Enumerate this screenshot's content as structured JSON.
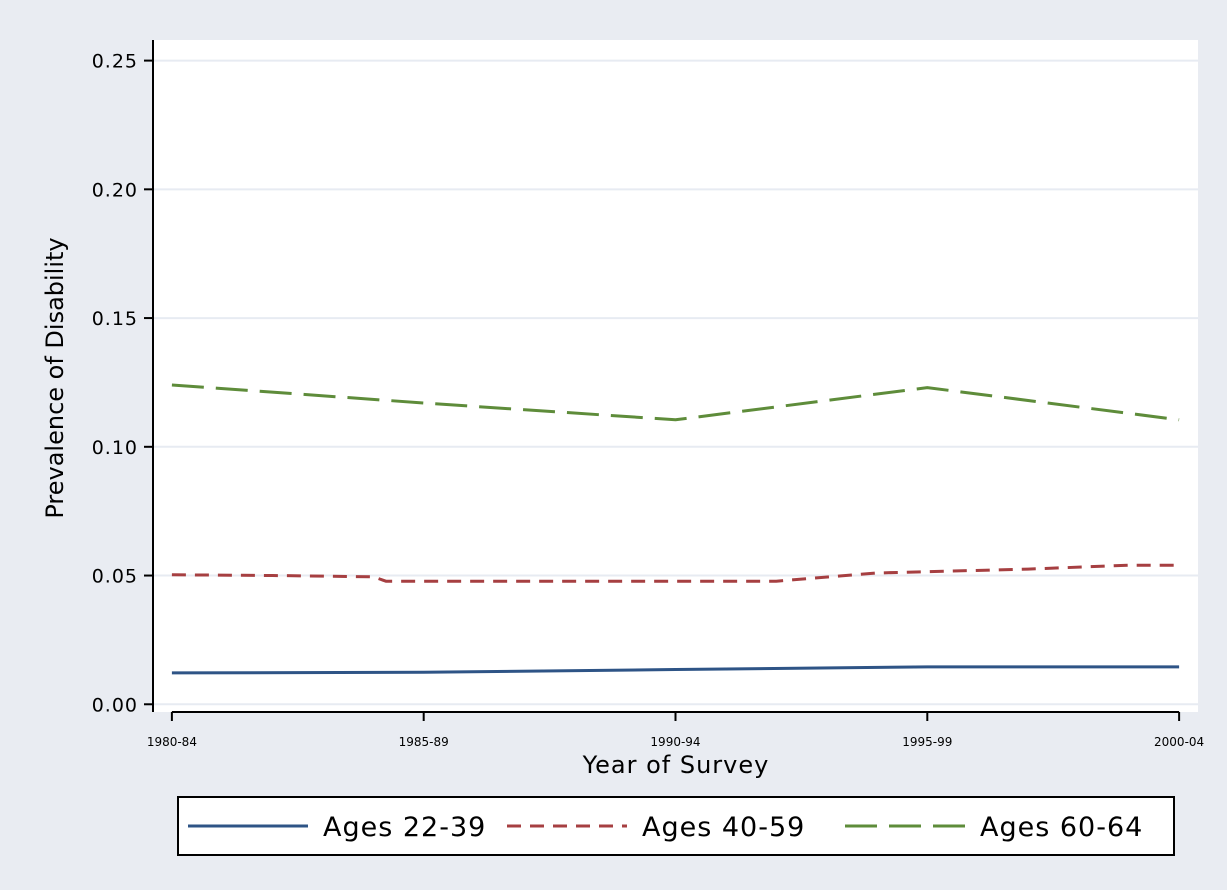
{
  "chart_data": {
    "type": "line",
    "title": "",
    "xlabel": "Year of Survey",
    "ylabel": "Prevalence of Disability",
    "x": [
      "1980-84",
      "1985-89",
      "1990-94",
      "1995-99",
      "2000-04"
    ],
    "x_values": [
      0,
      1,
      2,
      3,
      4
    ],
    "x_tick_labels": [
      "1980-84",
      "1985-89",
      "1990-94",
      "1995-99",
      "2000-04"
    ],
    "y_ticks": [
      0.0,
      0.05,
      0.1,
      0.15,
      0.2,
      0.25
    ],
    "y_tick_labels": [
      "0.00",
      "0.05",
      "0.10",
      "0.15",
      "0.20",
      "0.25"
    ],
    "ylim": [
      -0.003,
      0.258
    ],
    "xlim": [
      -0.075,
      4.075
    ],
    "grid": "horizontal",
    "legend_position": "bottom",
    "series": [
      {
        "name": "Ages 22-39",
        "color": "#2e5486",
        "dash": "solid",
        "x": [
          0,
          1,
          2,
          3,
          4
        ],
        "values": [
          0.0122,
          0.0124,
          0.0135,
          0.0145,
          0.0145
        ]
      },
      {
        "name": "Ages 40-59",
        "color": "#a63f41",
        "dash": "short-dash",
        "x": [
          0,
          0.4,
          0.8,
          0.85,
          1.2,
          1.6,
          2.0,
          2.4,
          2.8,
          3.0,
          3.4,
          3.8,
          4.0
        ],
        "values": [
          0.0503,
          0.05,
          0.0495,
          0.0478,
          0.0478,
          0.0478,
          0.0478,
          0.0478,
          0.051,
          0.0515,
          0.0525,
          0.054,
          0.054
        ]
      },
      {
        "name": "Ages 60-64",
        "color": "#5e8c3a",
        "dash": "long-dash",
        "x": [
          0,
          1,
          2,
          3,
          4
        ],
        "values": [
          0.124,
          0.117,
          0.1105,
          0.123,
          0.1105
        ]
      }
    ],
    "background": "#e9ecf2",
    "plot_background": "#ffffff",
    "grid_color": "#e7ebf2"
  }
}
